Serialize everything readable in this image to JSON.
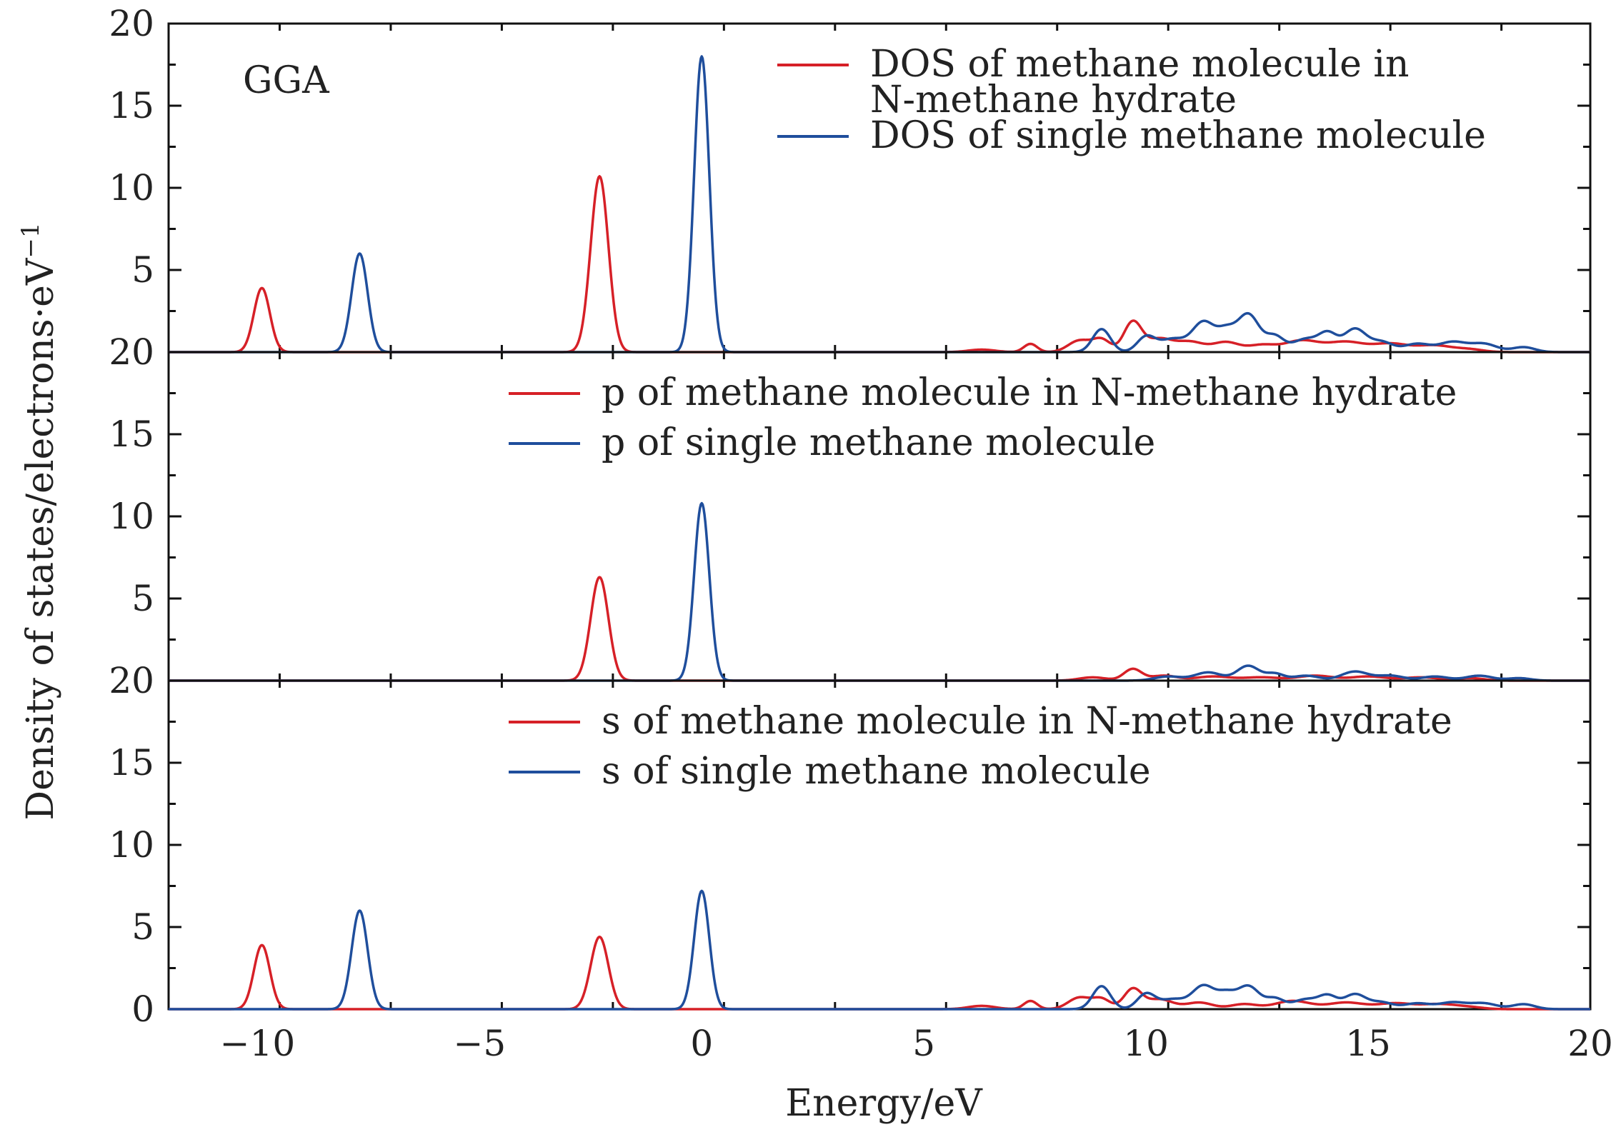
{
  "chart_data": {
    "type": "line",
    "layout": "three vertically stacked panels sharing the x axis",
    "xlabel": "Energy/eV",
    "ylabel_html": "Density of states/electrons·eV⁻¹",
    "xlim": [
      -12,
      20
    ],
    "xticks": [
      -10,
      -5,
      0,
      5,
      10,
      15,
      20
    ],
    "xtick_labels": [
      "−10",
      "−5",
      "0",
      "5",
      "10",
      "15",
      "20"
    ],
    "colors": {
      "hydrate": "#d62027",
      "single": "#1f4e9c",
      "axis": "#111111"
    },
    "panels": [
      {
        "annotation": "GGA",
        "ylim": [
          0,
          20
        ],
        "yticks": [
          5,
          10,
          15,
          20
        ],
        "ytick_labels": [
          "5",
          "10",
          "15",
          "20"
        ],
        "legend_position": "top-right",
        "legend": [
          {
            "label_lines": [
              "DOS of methane molecule in",
              "N-methane hydrate"
            ],
            "color_key": "hydrate"
          },
          {
            "label_lines": [
              "DOS of single methane molecule"
            ],
            "color_key": "single"
          }
        ],
        "series": [
          {
            "name": "DOS of methane molecule in N-methane hydrate",
            "color_key": "hydrate",
            "peaks": [
              [
                -9.9,
                3.9,
                0.18
              ],
              [
                -2.3,
                10.7,
                0.2
              ]
            ],
            "bands": [
              [
                6.3,
                0.15,
                0.3
              ],
              [
                7.4,
                0.5,
                0.15
              ],
              [
                8.5,
                0.7,
                0.25
              ],
              [
                9.0,
                0.75,
                0.2
              ],
              [
                9.7,
                1.8,
                0.2
              ],
              [
                10.3,
                0.8,
                0.3
              ],
              [
                11.0,
                0.6,
                0.3
              ],
              [
                11.8,
                0.6,
                0.3
              ],
              [
                12.6,
                0.4,
                0.3
              ],
              [
                13.5,
                0.7,
                0.4
              ],
              [
                14.5,
                0.6,
                0.4
              ],
              [
                15.5,
                0.5,
                0.4
              ],
              [
                16.5,
                0.4,
                0.4
              ],
              [
                17.3,
                0.15,
                0.3
              ]
            ]
          },
          {
            "name": "DOS of single methane molecule",
            "color_key": "single",
            "peaks": [
              [
                -7.7,
                6.0,
                0.18
              ],
              [
                0.0,
                18.0,
                0.17
              ]
            ],
            "bands": [
              [
                9.0,
                1.4,
                0.2
              ],
              [
                10.0,
                0.9,
                0.2
              ],
              [
                10.6,
                0.8,
                0.3
              ],
              [
                11.3,
                1.8,
                0.25
              ],
              [
                11.8,
                1.1,
                0.2
              ],
              [
                12.3,
                2.3,
                0.25
              ],
              [
                12.9,
                0.9,
                0.2
              ],
              [
                13.6,
                0.8,
                0.3
              ],
              [
                14.1,
                1.0,
                0.2
              ],
              [
                14.7,
                1.4,
                0.25
              ],
              [
                15.3,
                0.6,
                0.25
              ],
              [
                16.1,
                0.5,
                0.3
              ],
              [
                16.9,
                0.6,
                0.3
              ],
              [
                17.6,
                0.5,
                0.3
              ],
              [
                18.5,
                0.3,
                0.25
              ]
            ]
          }
        ]
      },
      {
        "annotation": "",
        "ylim": [
          0,
          20
        ],
        "yticks": [
          5,
          10,
          15,
          20
        ],
        "ytick_labels": [
          "5",
          "10",
          "15",
          "20"
        ],
        "legend_position": "top-right",
        "legend": [
          {
            "label_lines": [
              "p of methane molecule in N-methane hydrate"
            ],
            "color_key": "hydrate"
          },
          {
            "label_lines": [
              "p of single methane molecule"
            ],
            "color_key": "single"
          }
        ],
        "series": [
          {
            "name": "p of methane molecule in N-methane hydrate",
            "color_key": "hydrate",
            "peaks": [
              [
                -2.3,
                6.3,
                0.2
              ]
            ],
            "bands": [
              [
                8.8,
                0.2,
                0.3
              ],
              [
                9.7,
                0.7,
                0.2
              ],
              [
                10.4,
                0.3,
                0.3
              ],
              [
                11.5,
                0.25,
                0.4
              ],
              [
                12.6,
                0.2,
                0.4
              ],
              [
                13.8,
                0.3,
                0.4
              ],
              [
                15.0,
                0.25,
                0.4
              ],
              [
                16.2,
                0.2,
                0.4
              ],
              [
                17.3,
                0.15,
                0.3
              ]
            ]
          },
          {
            "name": "p of single methane molecule",
            "color_key": "single",
            "peaks": [
              [
                0.0,
                10.8,
                0.17
              ]
            ],
            "bands": [
              [
                10.5,
                0.25,
                0.3
              ],
              [
                11.4,
                0.5,
                0.3
              ],
              [
                12.3,
                0.9,
                0.25
              ],
              [
                12.9,
                0.4,
                0.2
              ],
              [
                13.6,
                0.3,
                0.3
              ],
              [
                14.7,
                0.55,
                0.3
              ],
              [
                15.5,
                0.3,
                0.3
              ],
              [
                16.5,
                0.25,
                0.3
              ],
              [
                17.5,
                0.3,
                0.3
              ],
              [
                18.4,
                0.15,
                0.25
              ]
            ]
          }
        ]
      },
      {
        "annotation": "",
        "ylim": [
          0,
          20
        ],
        "yticks": [
          0,
          5,
          10,
          15,
          20
        ],
        "ytick_labels": [
          "0",
          "5",
          "10",
          "15",
          "20"
        ],
        "legend_position": "top-right",
        "legend": [
          {
            "label_lines": [
              "s of methane molecule in N-methane hydrate"
            ],
            "color_key": "hydrate"
          },
          {
            "label_lines": [
              "s of single methane molecule"
            ],
            "color_key": "single"
          }
        ],
        "series": [
          {
            "name": "s of methane molecule in N-methane hydrate",
            "color_key": "hydrate",
            "peaks": [
              [
                -9.9,
                3.9,
                0.18
              ],
              [
                -2.3,
                4.4,
                0.2
              ]
            ],
            "bands": [
              [
                6.3,
                0.2,
                0.3
              ],
              [
                7.4,
                0.5,
                0.15
              ],
              [
                8.5,
                0.7,
                0.25
              ],
              [
                9.0,
                0.6,
                0.2
              ],
              [
                9.7,
                1.2,
                0.2
              ],
              [
                10.3,
                0.6,
                0.3
              ],
              [
                11.2,
                0.4,
                0.3
              ],
              [
                12.2,
                0.3,
                0.3
              ],
              [
                13.3,
                0.5,
                0.4
              ],
              [
                14.5,
                0.4,
                0.4
              ],
              [
                15.6,
                0.35,
                0.4
              ],
              [
                16.6,
                0.3,
                0.4
              ],
              [
                17.3,
                0.1,
                0.3
              ]
            ]
          },
          {
            "name": "s of single methane molecule",
            "color_key": "single",
            "peaks": [
              [
                -7.7,
                6.0,
                0.18
              ],
              [
                0.0,
                7.2,
                0.17
              ]
            ],
            "bands": [
              [
                9.0,
                1.4,
                0.2
              ],
              [
                10.0,
                0.9,
                0.2
              ],
              [
                10.6,
                0.6,
                0.3
              ],
              [
                11.3,
                1.4,
                0.25
              ],
              [
                11.8,
                0.8,
                0.2
              ],
              [
                12.3,
                1.4,
                0.25
              ],
              [
                12.9,
                0.6,
                0.2
              ],
              [
                13.6,
                0.6,
                0.3
              ],
              [
                14.1,
                0.7,
                0.2
              ],
              [
                14.7,
                0.9,
                0.25
              ],
              [
                15.3,
                0.4,
                0.25
              ],
              [
                16.1,
                0.35,
                0.3
              ],
              [
                16.9,
                0.4,
                0.3
              ],
              [
                17.6,
                0.35,
                0.3
              ],
              [
                18.5,
                0.3,
                0.25
              ]
            ]
          }
        ]
      }
    ]
  }
}
